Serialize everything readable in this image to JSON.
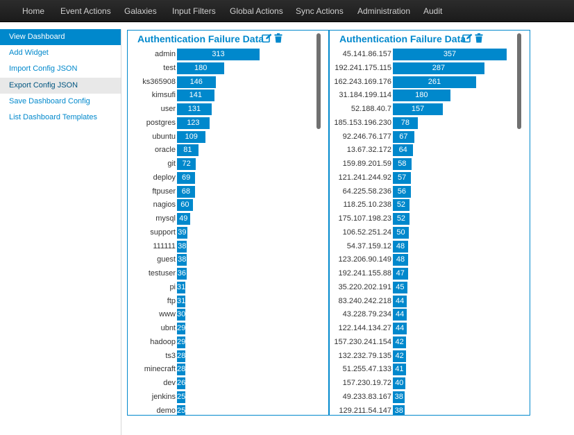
{
  "nav": {
    "items": [
      "Home",
      "Event Actions",
      "Galaxies",
      "Input Filters",
      "Global Actions",
      "Sync Actions",
      "Administration",
      "Audit"
    ]
  },
  "sidebar": {
    "items": [
      {
        "label": "View Dashboard",
        "state": "active"
      },
      {
        "label": "Add Widget",
        "state": ""
      },
      {
        "label": "Import Config JSON",
        "state": ""
      },
      {
        "label": "Export Config JSON",
        "state": "hover"
      },
      {
        "label": "Save Dashboard Config",
        "state": ""
      },
      {
        "label": "List Dashboard Templates",
        "state": ""
      }
    ]
  },
  "colors": {
    "accent": "#0088cc",
    "nav_bg": "#222222",
    "bar": "#0088cc"
  },
  "icons": {
    "edit": "edit-icon",
    "delete": "trash-icon"
  },
  "widgets": [
    {
      "title": "Authentication Failure Data",
      "chart_data": {
        "type": "bar",
        "orientation": "horizontal",
        "max": 313,
        "rows": [
          {
            "label": "admin",
            "value": 313
          },
          {
            "label": "test",
            "value": 180
          },
          {
            "label": "ks365908",
            "value": 146
          },
          {
            "label": "kimsufi",
            "value": 141
          },
          {
            "label": "user",
            "value": 131
          },
          {
            "label": "postgres",
            "value": 123
          },
          {
            "label": "ubuntu",
            "value": 109
          },
          {
            "label": "oracle",
            "value": 81
          },
          {
            "label": "git",
            "value": 72
          },
          {
            "label": "deploy",
            "value": 69
          },
          {
            "label": "ftpuser",
            "value": 68
          },
          {
            "label": "nagios",
            "value": 60
          },
          {
            "label": "mysql",
            "value": 49
          },
          {
            "label": "support",
            "value": 39
          },
          {
            "label": "111111",
            "value": 38
          },
          {
            "label": "guest",
            "value": 38
          },
          {
            "label": "testuser",
            "value": 36
          },
          {
            "label": "pi",
            "value": 31
          },
          {
            "label": "ftp",
            "value": 31
          },
          {
            "label": "www",
            "value": 30
          },
          {
            "label": "ubnt",
            "value": 29
          },
          {
            "label": "hadoop",
            "value": 29
          },
          {
            "label": "ts3",
            "value": 28
          },
          {
            "label": "minecraft",
            "value": 28
          },
          {
            "label": "dev",
            "value": 26
          },
          {
            "label": "jenkins",
            "value": 25
          },
          {
            "label": "demo",
            "value": 25
          }
        ]
      }
    },
    {
      "title": "Authentication Failure Data",
      "chart_data": {
        "type": "bar",
        "orientation": "horizontal",
        "max": 357,
        "rows": [
          {
            "label": "45.141.86.157",
            "value": 357
          },
          {
            "label": "192.241.175.115",
            "value": 287
          },
          {
            "label": "162.243.169.176",
            "value": 261
          },
          {
            "label": "31.184.199.114",
            "value": 180
          },
          {
            "label": "52.188.40.7",
            "value": 157
          },
          {
            "label": "185.153.196.230",
            "value": 78
          },
          {
            "label": "92.246.76.177",
            "value": 67
          },
          {
            "label": "13.67.32.172",
            "value": 64
          },
          {
            "label": "159.89.201.59",
            "value": 58
          },
          {
            "label": "121.241.244.92",
            "value": 57
          },
          {
            "label": "64.225.58.236",
            "value": 56
          },
          {
            "label": "118.25.10.238",
            "value": 52
          },
          {
            "label": "175.107.198.23",
            "value": 52
          },
          {
            "label": "106.52.251.24",
            "value": 50
          },
          {
            "label": "54.37.159.12",
            "value": 48
          },
          {
            "label": "123.206.90.149",
            "value": 48
          },
          {
            "label": "192.241.155.88",
            "value": 47
          },
          {
            "label": "35.220.202.191",
            "value": 45
          },
          {
            "label": "83.240.242.218",
            "value": 44
          },
          {
            "label": "43.228.79.234",
            "value": 44
          },
          {
            "label": "122.144.134.27",
            "value": 44
          },
          {
            "label": "157.230.241.154",
            "value": 42
          },
          {
            "label": "132.232.79.135",
            "value": 42
          },
          {
            "label": "51.255.47.133",
            "value": 41
          },
          {
            "label": "157.230.19.72",
            "value": 40
          },
          {
            "label": "49.233.83.167",
            "value": 38
          },
          {
            "label": "129.211.54.147",
            "value": 38
          }
        ]
      }
    }
  ]
}
